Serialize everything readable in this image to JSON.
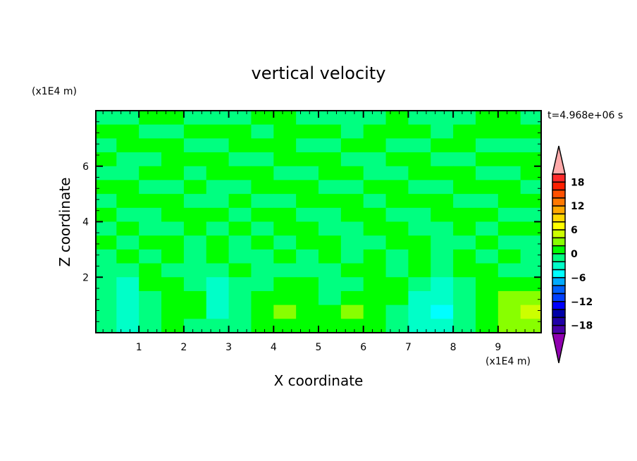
{
  "chart_data": {
    "type": "heatmap",
    "title": "vertical velocity",
    "xlabel": "X coordinate",
    "ylabel": "Z coordinate",
    "x_unit": "(x1E4 m)",
    "y_unit": "(x1E4 m)",
    "time_label": "t=4.968e+06 s",
    "xlim": [
      0.04,
      9.96
    ],
    "ylim": [
      0,
      8
    ],
    "xticks": [
      1,
      2,
      3,
      4,
      5,
      6,
      7,
      8,
      9
    ],
    "yticks": [
      2,
      4,
      6
    ],
    "grid": false,
    "colorbar": {
      "levels_min": -20,
      "levels_max": 20,
      "step": 2,
      "tick_labels": [
        "18",
        "12",
        "6",
        "0",
        "-6",
        "-12",
        "-18"
      ],
      "tick_values": [
        18,
        12,
        6,
        0,
        -6,
        -12,
        -18
      ],
      "colors_top_to_bottom": [
        "#ff2a2a",
        "#ff2000",
        "#ff5000",
        "#ff7800",
        "#ffa800",
        "#ffd800",
        "#ffff00",
        "#ccff00",
        "#88ff00",
        "#00ff00",
        "#00ff80",
        "#00ffc8",
        "#00ffff",
        "#00aaff",
        "#0060ff",
        "#0040ff",
        "#0000ff",
        "#0000a8",
        "#2000a8",
        "#4800a8"
      ],
      "over_color": "#ffaaaa",
      "under_color": "#9000b0"
    },
    "grid_x_cell": 0.5,
    "grid_z_cell": 0.5,
    "values_rows_top_to_bottom": [
      [
        -1,
        -1,
        1,
        1,
        -1,
        -1,
        -1,
        1,
        1,
        -1,
        -1,
        -1,
        -1,
        1,
        -1,
        -1,
        -1,
        1,
        1,
        -1
      ],
      [
        1,
        1,
        -1,
        -1,
        1,
        1,
        1,
        -1,
        1,
        1,
        1,
        -1,
        1,
        1,
        1,
        -1,
        1,
        1,
        1,
        1
      ],
      [
        -1,
        1,
        1,
        1,
        -1,
        -1,
        1,
        1,
        1,
        -1,
        -1,
        1,
        1,
        -1,
        -1,
        1,
        1,
        -1,
        -1,
        -1
      ],
      [
        1,
        -1,
        -1,
        1,
        1,
        1,
        -1,
        -1,
        1,
        1,
        1,
        -1,
        -1,
        1,
        1,
        -1,
        -1,
        1,
        1,
        1
      ],
      [
        -1,
        -1,
        1,
        1,
        -1,
        1,
        1,
        1,
        -1,
        -1,
        1,
        1,
        -1,
        -1,
        1,
        1,
        1,
        -1,
        -1,
        1
      ],
      [
        1,
        1,
        -1,
        -1,
        1,
        -1,
        -1,
        1,
        1,
        1,
        -1,
        -1,
        1,
        1,
        -1,
        -1,
        1,
        1,
        1,
        -1
      ],
      [
        -1,
        1,
        1,
        1,
        -1,
        -1,
        1,
        -1,
        -1,
        1,
        1,
        1,
        -1,
        1,
        1,
        1,
        -1,
        -1,
        1,
        1
      ],
      [
        1,
        -1,
        -1,
        1,
        1,
        1,
        -1,
        1,
        1,
        -1,
        -1,
        1,
        1,
        -1,
        -1,
        1,
        1,
        1,
        -1,
        -1
      ],
      [
        -1,
        1,
        -1,
        -1,
        1,
        -1,
        1,
        -1,
        1,
        1,
        -1,
        -1,
        1,
        1,
        -1,
        -1,
        1,
        -1,
        1,
        1
      ],
      [
        1,
        -1,
        1,
        1,
        -1,
        1,
        -1,
        1,
        -1,
        1,
        1,
        -1,
        -1,
        1,
        1,
        -1,
        -1,
        1,
        -1,
        -1
      ],
      [
        -1,
        1,
        -1,
        1,
        -1,
        1,
        -1,
        -1,
        1,
        -1,
        1,
        -1,
        1,
        -1,
        1,
        -1,
        1,
        -1,
        1,
        -1
      ],
      [
        -1,
        -1,
        1,
        -1,
        -1,
        -1,
        1,
        -1,
        -1,
        -1,
        -1,
        1,
        1,
        -1,
        1,
        -1,
        1,
        1,
        -1,
        -1
      ],
      [
        -1,
        -3,
        1,
        1,
        -1,
        -3,
        -1,
        -1,
        1,
        1,
        -1,
        -1,
        1,
        1,
        -1,
        -3,
        -1,
        1,
        1,
        1
      ],
      [
        -1,
        -3,
        -1,
        1,
        1,
        -3,
        -1,
        1,
        1,
        1,
        -1,
        1,
        1,
        1,
        -3,
        -3,
        -1,
        1,
        3,
        3
      ],
      [
        -1,
        -3,
        -1,
        1,
        1,
        -3,
        -1,
        1,
        3,
        1,
        1,
        3,
        1,
        -1,
        -3,
        -5,
        -1,
        1,
        3,
        5
      ],
      [
        -1,
        -3,
        -1,
        1,
        -1,
        -1,
        -1,
        1,
        1,
        1,
        1,
        1,
        1,
        -1,
        -3,
        -3,
        -1,
        1,
        3,
        3
      ]
    ]
  }
}
